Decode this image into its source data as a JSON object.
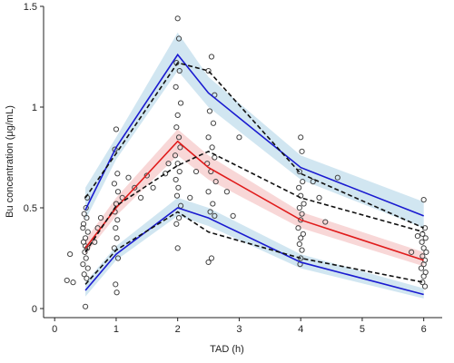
{
  "chart_data": {
    "type": "vpc",
    "x_label": "TAD (h)",
    "y_label": "Bu concentration (μg/mL)",
    "xlim": [
      -0.18,
      6.3
    ],
    "ylim": [
      -0.045,
      1.5
    ],
    "xticks": [
      0,
      1,
      2,
      3,
      4,
      5,
      6
    ],
    "yticks": [
      0,
      0.5,
      1,
      1.5
    ],
    "x": [
      0.5,
      1,
      2,
      2.5,
      4,
      6
    ],
    "bands": [
      {
        "color": "#c9e2ef",
        "low": [
          0.44,
          0.74,
          1.18,
          1.0,
          0.64,
          0.4
        ],
        "high": [
          0.6,
          0.85,
          1.37,
          1.15,
          0.76,
          0.53
        ]
      },
      {
        "color": "#f7d0d0",
        "low": [
          0.27,
          0.46,
          0.76,
          0.64,
          0.4,
          0.21
        ],
        "high": [
          0.34,
          0.55,
          0.89,
          0.76,
          0.48,
          0.28
        ]
      },
      {
        "color": "#c9e2ef",
        "low": [
          0.06,
          0.24,
          0.46,
          0.41,
          0.2,
          0.05
        ],
        "high": [
          0.13,
          0.31,
          0.55,
          0.5,
          0.27,
          0.1
        ]
      }
    ],
    "lines": [
      {
        "color": "#1a1ad0",
        "dashed": false,
        "values": [
          0.49,
          0.8,
          1.26,
          1.07,
          0.7,
          0.46
        ]
      },
      {
        "color": "#e01b1b",
        "dashed": false,
        "values": [
          0.3,
          0.5,
          0.83,
          0.7,
          0.44,
          0.24
        ]
      },
      {
        "color": "#1a1ad0",
        "dashed": false,
        "values": [
          0.09,
          0.27,
          0.5,
          0.45,
          0.23,
          0.07
        ]
      },
      {
        "color": "#111111",
        "dashed": true,
        "values": [
          0.55,
          0.77,
          1.22,
          1.18,
          0.67,
          0.4
        ]
      },
      {
        "color": "#111111",
        "dashed": true,
        "values": [
          0.28,
          0.51,
          0.71,
          0.78,
          0.55,
          0.38
        ]
      },
      {
        "color": "#111111",
        "dashed": true,
        "values": [
          0.12,
          0.29,
          0.48,
          0.38,
          0.25,
          0.13
        ]
      }
    ],
    "observations": {
      "x": [
        0.48,
        0.52,
        0.46,
        0.54,
        0.5,
        0.47,
        0.53,
        0.49,
        0.51,
        0.46,
        0.54,
        0.48,
        0.52,
        0.5,
        0.47,
        0.53,
        0.51,
        0.5,
        0.25,
        0.3,
        0.2,
        0.65,
        0.7,
        0.75,
        1.0,
        0.98,
        1.02,
        0.97,
        1.03,
        1.0,
        0.98,
        1.02,
        0.99,
        1.01,
        0.97,
        1.03,
        0.99,
        1.01,
        1.1,
        1.2,
        1.3,
        1.4,
        1.5,
        1.6,
        1.8,
        1.85,
        2.0,
        2.02,
        1.98,
        2.03,
        1.97,
        2.05,
        2.0,
        1.98,
        2.02,
        2.04,
        1.96,
        2.0,
        2.03,
        1.97,
        2.01,
        1.99,
        2.05,
        2.02,
        1.98,
        2.0,
        2.2,
        2.3,
        2.55,
        2.5,
        2.6,
        2.52,
        2.58,
        2.5,
        2.56,
        2.6,
        2.48,
        2.54,
        2.62,
        2.5,
        2.57,
        2.53,
        2.6,
        2.55,
        2.5,
        2.8,
        2.9,
        3.0,
        4.0,
        4.02,
        3.98,
        4.03,
        3.97,
        4.0,
        4.05,
        3.98,
        4.02,
        4.0,
        3.96,
        4.04,
        4.0,
        3.98,
        4.02,
        4.0,
        3.99,
        4.2,
        4.3,
        4.4,
        4.6,
        6.0,
        6.02,
        5.98,
        6.03,
        5.97,
        6.0,
        6.04,
        5.98,
        6.02,
        6.0,
        5.96,
        6.03,
        6.0,
        5.98,
        6.02,
        5.8,
        5.9
      ],
      "y": [
        0.47,
        0.45,
        0.4,
        0.38,
        0.35,
        0.33,
        0.3,
        0.28,
        0.25,
        0.22,
        0.2,
        0.17,
        0.15,
        0.31,
        0.42,
        0.55,
        0.5,
        0.01,
        0.27,
        0.13,
        0.14,
        0.33,
        0.4,
        0.45,
        0.89,
        0.79,
        0.67,
        0.62,
        0.58,
        0.52,
        0.48,
        0.44,
        0.4,
        0.35,
        0.3,
        0.25,
        0.12,
        0.08,
        0.55,
        0.65,
        0.6,
        0.55,
        0.66,
        0.6,
        0.67,
        0.72,
        1.44,
        1.34,
        1.22,
        1.18,
        1.1,
        1.02,
        0.96,
        0.9,
        0.85,
        0.8,
        0.76,
        0.72,
        0.68,
        0.64,
        0.6,
        0.56,
        0.51,
        0.45,
        0.42,
        0.3,
        0.55,
        0.68,
        1.25,
        1.18,
        1.06,
        0.98,
        0.92,
        0.85,
        0.8,
        0.75,
        0.72,
        0.68,
        0.63,
        0.58,
        0.52,
        0.48,
        0.46,
        0.25,
        0.23,
        0.58,
        0.46,
        0.85,
        0.85,
        0.78,
        0.68,
        0.63,
        0.6,
        0.56,
        0.52,
        0.5,
        0.47,
        0.44,
        0.4,
        0.37,
        0.35,
        0.32,
        0.29,
        0.25,
        0.22,
        0.63,
        0.55,
        0.43,
        0.65,
        0.54,
        0.4,
        0.37,
        0.35,
        0.33,
        0.3,
        0.28,
        0.26,
        0.24,
        0.22,
        0.2,
        0.18,
        0.16,
        0.13,
        0.11,
        0.28,
        0.36
      ],
      "color": "#444444"
    }
  }
}
